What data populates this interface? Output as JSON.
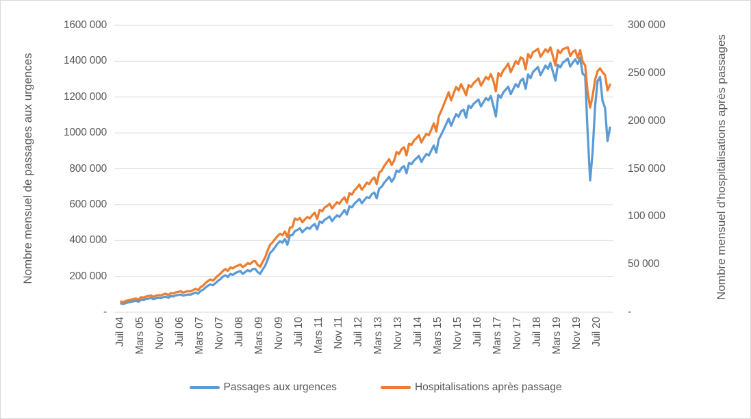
{
  "figure": {
    "left_axis": {
      "title": "Nombre mensuel de passages aux urgences",
      "ticks": [
        "1600 000",
        "1400 000",
        "1200 000",
        "1000 000",
        "800 000",
        "600 000",
        "400 000",
        "200 000",
        "-"
      ]
    },
    "right_axis": {
      "title": "Nombre mensuel d'hospitalisations après passages",
      "ticks": [
        "300 000",
        "250 000",
        "200 000",
        "150 000",
        "100 000",
        "50 000",
        "-"
      ]
    },
    "x_axis": {
      "tick_labels": [
        "Juil 04",
        "Mars 05",
        "Nov 05",
        "Juil 06",
        "Mars 07",
        "Nov 07",
        "Juil 08",
        "Mars 09",
        "Nov 09",
        "Juil 10",
        "Mars 11",
        "Nov 11",
        "Juil 12",
        "Mars 13",
        "Nov 13",
        "Juil 14",
        "Mars 15",
        "Nov 15",
        "Juil 16",
        "Mars 17",
        "Nov 17",
        "Juil 18",
        "Mars 19",
        "Nov 19",
        "Juil 20"
      ],
      "tick_month_indices": [
        0,
        8,
        16,
        24,
        32,
        40,
        48,
        56,
        64,
        72,
        80,
        88,
        96,
        104,
        112,
        120,
        128,
        136,
        144,
        152,
        160,
        168,
        176,
        184,
        192
      ]
    },
    "legend": [
      {
        "label": "Passages aux urgences",
        "color": "#5B9BD5"
      },
      {
        "label": "Hospitalisations après passage",
        "color": "#ED7D31"
      }
    ],
    "colors": {
      "grid": "#D9D9D9",
      "text": "#595959",
      "border": "#D7D7D7"
    }
  },
  "chart_data": {
    "type": "line",
    "title": "",
    "x_start_label": "Juil 04",
    "x_months_count": 198,
    "left_ylim": [
      0,
      1600000
    ],
    "right_ylim": [
      0,
      300000
    ],
    "grid": true,
    "legend_position": "bottom",
    "series": [
      {
        "name": "Passages aux urgences",
        "axis": "left",
        "color": "#5B9BD5",
        "values": [
          48000,
          46000,
          52000,
          55000,
          57000,
          61000,
          64000,
          58000,
          70000,
          68000,
          74000,
          76000,
          79000,
          73000,
          77000,
          80000,
          79000,
          84000,
          87000,
          80000,
          90000,
          88000,
          93000,
          96000,
          99000,
          92000,
          96000,
          99000,
          98000,
          104000,
          110000,
          104000,
          118000,
          125000,
          138000,
          148000,
          155000,
          150000,
          162000,
          175000,
          185000,
          198000,
          206000,
          196000,
          214000,
          208000,
          218000,
          224000,
          230000,
          214000,
          224000,
          234000,
          228000,
          240000,
          242000,
          224000,
          214000,
          238000,
          258000,
          292000,
          330000,
          344000,
          362000,
          382000,
          396000,
          388000,
          408000,
          376000,
          428000,
          430000,
          452000,
          458000,
          468000,
          446000,
          460000,
          472000,
          465000,
          482000,
          492000,
          462000,
          506000,
          498000,
          516000,
          524000,
          534000,
          508000,
          526000,
          540000,
          532000,
          550000,
          570000,
          545000,
          590000,
          585000,
          605000,
          618000,
          632000,
          608000,
          625000,
          642000,
          636000,
          658000,
          668000,
          635000,
          690000,
          700000,
          722000,
          738000,
          755000,
          728000,
          748000,
          790000,
          782000,
          805000,
          815000,
          775000,
          832000,
          826000,
          846000,
          858000,
          872000,
          838000,
          862000,
          882000,
          874000,
          902000,
          930000,
          890000,
          965000,
          990000,
          1020000,
          1050000,
          1080000,
          1040000,
          1075000,
          1105000,
          1090000,
          1120000,
          1130000,
          1085000,
          1152000,
          1140000,
          1162000,
          1174000,
          1186000,
          1148000,
          1172000,
          1194000,
          1182000,
          1206000,
          1150000,
          1092000,
          1212000,
          1196000,
          1226000,
          1242000,
          1258000,
          1216000,
          1244000,
          1272000,
          1256000,
          1292000,
          1302000,
          1246000,
          1326000,
          1306000,
          1340000,
          1354000,
          1368000,
          1322000,
          1348000,
          1376000,
          1358000,
          1390000,
          1342000,
          1292000,
          1380000,
          1366000,
          1392000,
          1402000,
          1415000,
          1370000,
          1392000,
          1410000,
          1385000,
          1420000,
          1330000,
          1318000,
          1000000,
          735000,
          890000,
          1150000,
          1290000,
          1312000,
          1180000,
          1140000,
          955000,
          1030000
        ]
      },
      {
        "name": "Hospitalisations après passage",
        "axis": "right",
        "color": "#ED7D31",
        "values": [
          11000,
          10600,
          11900,
          12500,
          13000,
          13900,
          14400,
          13200,
          15700,
          15300,
          16400,
          16900,
          17500,
          16200,
          17100,
          17800,
          17600,
          18700,
          19300,
          17900,
          20000,
          19600,
          20700,
          21300,
          22000,
          20500,
          21400,
          22000,
          21800,
          23100,
          24400,
          23100,
          26200,
          27700,
          30500,
          32700,
          34200,
          33000,
          35600,
          38200,
          40300,
          43200,
          45200,
          43200,
          46800,
          45800,
          47700,
          48600,
          50000,
          47200,
          49000,
          51200,
          50300,
          53000,
          53400,
          49600,
          47500,
          52600,
          57000,
          64400,
          70500,
          73000,
          76500,
          79500,
          82000,
          80500,
          84500,
          78500,
          88500,
          89000,
          98000,
          96500,
          98500,
          94000,
          97000,
          99500,
          98000,
          101500,
          104000,
          97500,
          107000,
          105500,
          109500,
          111000,
          113500,
          108500,
          112000,
          115000,
          113500,
          117500,
          120000,
          114500,
          124500,
          123000,
          127500,
          130000,
          133500,
          128000,
          131500,
          135500,
          134000,
          138500,
          141000,
          134000,
          146000,
          148000,
          153000,
          156500,
          160000,
          154000,
          158500,
          167500,
          165500,
          170500,
          172500,
          164000,
          176000,
          175000,
          179500,
          182000,
          185000,
          177500,
          182500,
          186500,
          185000,
          191000,
          197500,
          189000,
          205000,
          210500,
          217000,
          223500,
          230000,
          221500,
          229000,
          235500,
          232000,
          238500,
          233000,
          227000,
          237500,
          235500,
          239500,
          242000,
          244500,
          237000,
          241500,
          246000,
          243500,
          249000,
          242000,
          231000,
          250000,
          247000,
          253000,
          256000,
          260000,
          251000,
          256500,
          262500,
          259500,
          266500,
          265000,
          254000,
          270000,
          266000,
          272000,
          273500,
          275500,
          267000,
          271000,
          275000,
          272000,
          277000,
          268000,
          258000,
          274000,
          271000,
          275000,
          276000,
          277000,
          268000,
          272000,
          274000,
          266000,
          274000,
          262000,
          258000,
          230000,
          214000,
          226000,
          243000,
          252000,
          255000,
          251000,
          248000,
          232000,
          238000
        ]
      }
    ]
  }
}
